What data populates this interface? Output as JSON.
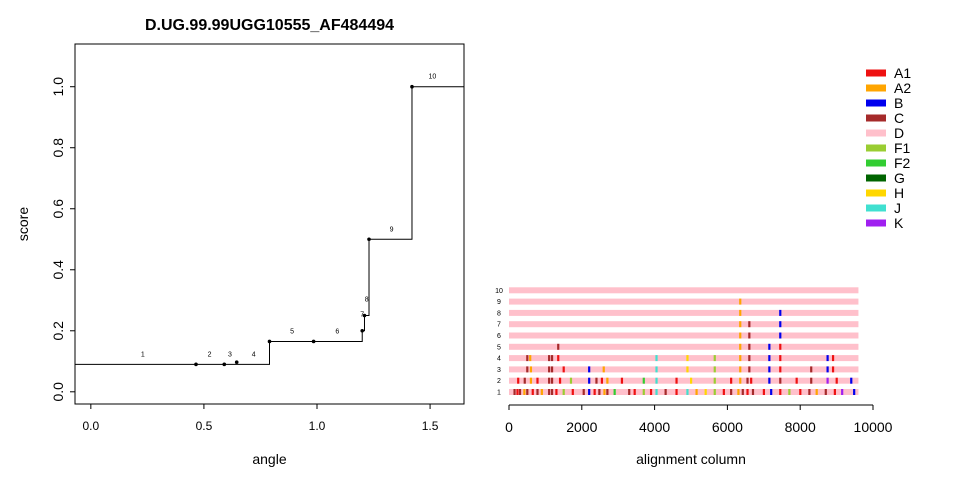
{
  "chart_data": [
    {
      "type": "line",
      "subtype": "step",
      "title": "D.UG.99.99UGG10555_AF484494",
      "xlabel": "angle",
      "ylabel": "score",
      "xlim": [
        -0.07,
        1.65
      ],
      "ylim": [
        -0.04,
        1.14
      ],
      "xticks": [
        0.0,
        0.5,
        1.0,
        1.5
      ],
      "xtick_labels": [
        "0.0",
        "0.5",
        "1.0",
        "1.5"
      ],
      "yticks": [
        0.0,
        0.2,
        0.4,
        0.6,
        0.8,
        1.0
      ],
      "ytick_labels": [
        "0.0",
        "0.2",
        "0.4",
        "0.6",
        "0.8",
        "1.0"
      ],
      "steps": [
        {
          "x_start": -0.07,
          "x_end": 0.79,
          "y": 0.09
        },
        {
          "x_start": 0.79,
          "x_end": 1.2,
          "y": 0.165
        },
        {
          "x_start": 1.2,
          "x_end": 1.21,
          "y": 0.2
        },
        {
          "x_start": 1.21,
          "x_end": 1.23,
          "y": 0.25
        },
        {
          "x_start": 1.23,
          "x_end": 1.42,
          "y": 0.5
        },
        {
          "x_start": 1.42,
          "x_end": 1.65,
          "y": 1.0
        }
      ],
      "points": [
        {
          "x": 0.465,
          "y": 0.09
        },
        {
          "x": 0.59,
          "y": 0.09
        },
        {
          "x": 0.645,
          "y": 0.097
        },
        {
          "x": 0.79,
          "y": 0.165
        },
        {
          "x": 0.985,
          "y": 0.165
        },
        {
          "x": 1.2,
          "y": 0.2
        },
        {
          "x": 1.21,
          "y": 0.25
        },
        {
          "x": 1.23,
          "y": 0.5
        },
        {
          "x": 1.42,
          "y": 1.0
        }
      ],
      "segment_labels": [
        {
          "text": "1",
          "x": 0.23,
          "y": 0.09
        },
        {
          "text": "2",
          "x": 0.525,
          "y": 0.09
        },
        {
          "text": "3",
          "x": 0.615,
          "y": 0.09
        },
        {
          "text": "4",
          "x": 0.72,
          "y": 0.09
        },
        {
          "text": "5",
          "x": 0.89,
          "y": 0.165
        },
        {
          "text": "6",
          "x": 1.09,
          "y": 0.165
        },
        {
          "text": "7",
          "x": 1.2,
          "y": 0.22
        },
        {
          "text": "8",
          "x": 1.22,
          "y": 0.27
        },
        {
          "text": "9",
          "x": 1.33,
          "y": 0.5
        },
        {
          "text": "10",
          "x": 1.51,
          "y": 1.0
        }
      ]
    },
    {
      "type": "bar",
      "subtype": "alignment-strips",
      "xlabel": "alignment column",
      "xlim": [
        0,
        10000
      ],
      "xticks": [
        0,
        2000,
        4000,
        6000,
        8000,
        10000
      ],
      "xtick_labels": [
        "0",
        "2000",
        "4000",
        "6000",
        "8000",
        "10000"
      ],
      "row_labels": [
        "1",
        "2",
        "3",
        "4",
        "5",
        "6",
        "7",
        "8",
        "9",
        "10"
      ],
      "alignment_length": 9600,
      "background_subtype": "D",
      "rows": [
        {
          "label": "1",
          "marks": [
            {
              "pos": 150,
              "subtype": "C"
            },
            {
              "pos": 230,
              "subtype": "A1"
            },
            {
              "pos": 300,
              "subtype": "C"
            },
            {
              "pos": 420,
              "subtype": "A2"
            },
            {
              "pos": 500,
              "subtype": "C"
            },
            {
              "pos": 650,
              "subtype": "A1"
            },
            {
              "pos": 780,
              "subtype": "C"
            },
            {
              "pos": 900,
              "subtype": "A2"
            },
            {
              "pos": 1100,
              "subtype": "C"
            },
            {
              "pos": 1180,
              "subtype": "C"
            },
            {
              "pos": 1300,
              "subtype": "A1"
            },
            {
              "pos": 1500,
              "subtype": "F1"
            },
            {
              "pos": 1750,
              "subtype": "A1"
            },
            {
              "pos": 2050,
              "subtype": "C"
            },
            {
              "pos": 2200,
              "subtype": "B"
            },
            {
              "pos": 2350,
              "subtype": "A1"
            },
            {
              "pos": 2480,
              "subtype": "C"
            },
            {
              "pos": 2620,
              "subtype": "A2"
            },
            {
              "pos": 2700,
              "subtype": "C"
            },
            {
              "pos": 2900,
              "subtype": "F2"
            },
            {
              "pos": 3300,
              "subtype": "C"
            },
            {
              "pos": 3450,
              "subtype": "A1"
            },
            {
              "pos": 3700,
              "subtype": "F1"
            },
            {
              "pos": 3900,
              "subtype": "A1"
            },
            {
              "pos": 4050,
              "subtype": "J"
            },
            {
              "pos": 4300,
              "subtype": "C"
            },
            {
              "pos": 4600,
              "subtype": "A1"
            },
            {
              "pos": 4900,
              "subtype": "J"
            },
            {
              "pos": 5150,
              "subtype": "A2"
            },
            {
              "pos": 5400,
              "subtype": "H"
            },
            {
              "pos": 5650,
              "subtype": "F1"
            },
            {
              "pos": 5900,
              "subtype": "A1"
            },
            {
              "pos": 6100,
              "subtype": "C"
            },
            {
              "pos": 6300,
              "subtype": "A2"
            },
            {
              "pos": 6420,
              "subtype": "C"
            },
            {
              "pos": 6550,
              "subtype": "A1"
            },
            {
              "pos": 6700,
              "subtype": "C"
            },
            {
              "pos": 7000,
              "subtype": "A1"
            },
            {
              "pos": 7200,
              "subtype": "B"
            },
            {
              "pos": 7450,
              "subtype": "A1"
            },
            {
              "pos": 7700,
              "subtype": "F1"
            },
            {
              "pos": 8000,
              "subtype": "A1"
            },
            {
              "pos": 8250,
              "subtype": "C"
            },
            {
              "pos": 8450,
              "subtype": "A2"
            },
            {
              "pos": 8700,
              "subtype": "C"
            },
            {
              "pos": 8950,
              "subtype": "A1"
            },
            {
              "pos": 9150,
              "subtype": "K"
            },
            {
              "pos": 9480,
              "subtype": "B"
            }
          ]
        },
        {
          "label": "2",
          "marks": [
            {
              "pos": 250,
              "subtype": "A1"
            },
            {
              "pos": 430,
              "subtype": "C"
            },
            {
              "pos": 600,
              "subtype": "A2"
            },
            {
              "pos": 780,
              "subtype": "A1"
            },
            {
              "pos": 1100,
              "subtype": "C"
            },
            {
              "pos": 1180,
              "subtype": "C"
            },
            {
              "pos": 1400,
              "subtype": "A1"
            },
            {
              "pos": 1700,
              "subtype": "F1"
            },
            {
              "pos": 2200,
              "subtype": "B"
            },
            {
              "pos": 2400,
              "subtype": "C"
            },
            {
              "pos": 2550,
              "subtype": "A1"
            },
            {
              "pos": 2700,
              "subtype": "A2"
            },
            {
              "pos": 3100,
              "subtype": "A1"
            },
            {
              "pos": 3700,
              "subtype": "F2"
            },
            {
              "pos": 4050,
              "subtype": "J"
            },
            {
              "pos": 4600,
              "subtype": "A1"
            },
            {
              "pos": 5000,
              "subtype": "H"
            },
            {
              "pos": 5650,
              "subtype": "F1"
            },
            {
              "pos": 6100,
              "subtype": "A1"
            },
            {
              "pos": 6350,
              "subtype": "A2"
            },
            {
              "pos": 6550,
              "subtype": "C"
            },
            {
              "pos": 6650,
              "subtype": "A1"
            },
            {
              "pos": 7150,
              "subtype": "B"
            },
            {
              "pos": 7450,
              "subtype": "C"
            },
            {
              "pos": 7900,
              "subtype": "A1"
            },
            {
              "pos": 8300,
              "subtype": "C"
            },
            {
              "pos": 8750,
              "subtype": "K"
            },
            {
              "pos": 9000,
              "subtype": "A1"
            },
            {
              "pos": 9400,
              "subtype": "B"
            }
          ]
        },
        {
          "label": "3",
          "marks": [
            {
              "pos": 500,
              "subtype": "C"
            },
            {
              "pos": 600,
              "subtype": "A2"
            },
            {
              "pos": 1100,
              "subtype": "C"
            },
            {
              "pos": 1180,
              "subtype": "C"
            },
            {
              "pos": 1500,
              "subtype": "A1"
            },
            {
              "pos": 2200,
              "subtype": "B"
            },
            {
              "pos": 2600,
              "subtype": "A2"
            },
            {
              "pos": 4050,
              "subtype": "J"
            },
            {
              "pos": 4900,
              "subtype": "H"
            },
            {
              "pos": 5650,
              "subtype": "F1"
            },
            {
              "pos": 6350,
              "subtype": "A2"
            },
            {
              "pos": 6600,
              "subtype": "C"
            },
            {
              "pos": 7150,
              "subtype": "B"
            },
            {
              "pos": 7450,
              "subtype": "A1"
            },
            {
              "pos": 8300,
              "subtype": "C"
            },
            {
              "pos": 8750,
              "subtype": "B"
            },
            {
              "pos": 8900,
              "subtype": "A1"
            }
          ]
        },
        {
          "label": "4",
          "marks": [
            {
              "pos": 500,
              "subtype": "C"
            },
            {
              "pos": 580,
              "subtype": "A2"
            },
            {
              "pos": 1100,
              "subtype": "C"
            },
            {
              "pos": 1180,
              "subtype": "C"
            },
            {
              "pos": 1350,
              "subtype": "A1"
            },
            {
              "pos": 4050,
              "subtype": "J"
            },
            {
              "pos": 4900,
              "subtype": "H"
            },
            {
              "pos": 5650,
              "subtype": "F1"
            },
            {
              "pos": 6350,
              "subtype": "A2"
            },
            {
              "pos": 6600,
              "subtype": "C"
            },
            {
              "pos": 7150,
              "subtype": "B"
            },
            {
              "pos": 7450,
              "subtype": "A1"
            },
            {
              "pos": 8750,
              "subtype": "B"
            },
            {
              "pos": 8900,
              "subtype": "A1"
            }
          ]
        },
        {
          "label": "5",
          "marks": [
            {
              "pos": 1350,
              "subtype": "C"
            },
            {
              "pos": 6350,
              "subtype": "A2"
            },
            {
              "pos": 6600,
              "subtype": "C"
            },
            {
              "pos": 7150,
              "subtype": "B"
            },
            {
              "pos": 7450,
              "subtype": "A1"
            }
          ]
        },
        {
          "label": "6",
          "marks": [
            {
              "pos": 6350,
              "subtype": "A2"
            },
            {
              "pos": 6600,
              "subtype": "C"
            },
            {
              "pos": 7450,
              "subtype": "B"
            }
          ]
        },
        {
          "label": "7",
          "marks": [
            {
              "pos": 6350,
              "subtype": "A2"
            },
            {
              "pos": 6600,
              "subtype": "C"
            },
            {
              "pos": 7450,
              "subtype": "B"
            }
          ]
        },
        {
          "label": "8",
          "marks": [
            {
              "pos": 6350,
              "subtype": "A2"
            },
            {
              "pos": 7450,
              "subtype": "B"
            }
          ]
        },
        {
          "label": "9",
          "marks": [
            {
              "pos": 6350,
              "subtype": "A2"
            }
          ]
        },
        {
          "label": "10",
          "marks": []
        }
      ]
    }
  ],
  "legend": {
    "placement": "top-right",
    "items": [
      {
        "label": "A1",
        "color": "#ee1111"
      },
      {
        "label": "A2",
        "color": "#ffa500"
      },
      {
        "label": "B",
        "color": "#0000ee"
      },
      {
        "label": "C",
        "color": "#a52a2a"
      },
      {
        "label": "D",
        "color": "#ffc0cb"
      },
      {
        "label": "F1",
        "color": "#9acd32"
      },
      {
        "label": "F2",
        "color": "#32cd32"
      },
      {
        "label": "G",
        "color": "#006400"
      },
      {
        "label": "H",
        "color": "#ffd700"
      },
      {
        "label": "J",
        "color": "#40e0d0"
      },
      {
        "label": "K",
        "color": "#a020f0"
      }
    ]
  }
}
